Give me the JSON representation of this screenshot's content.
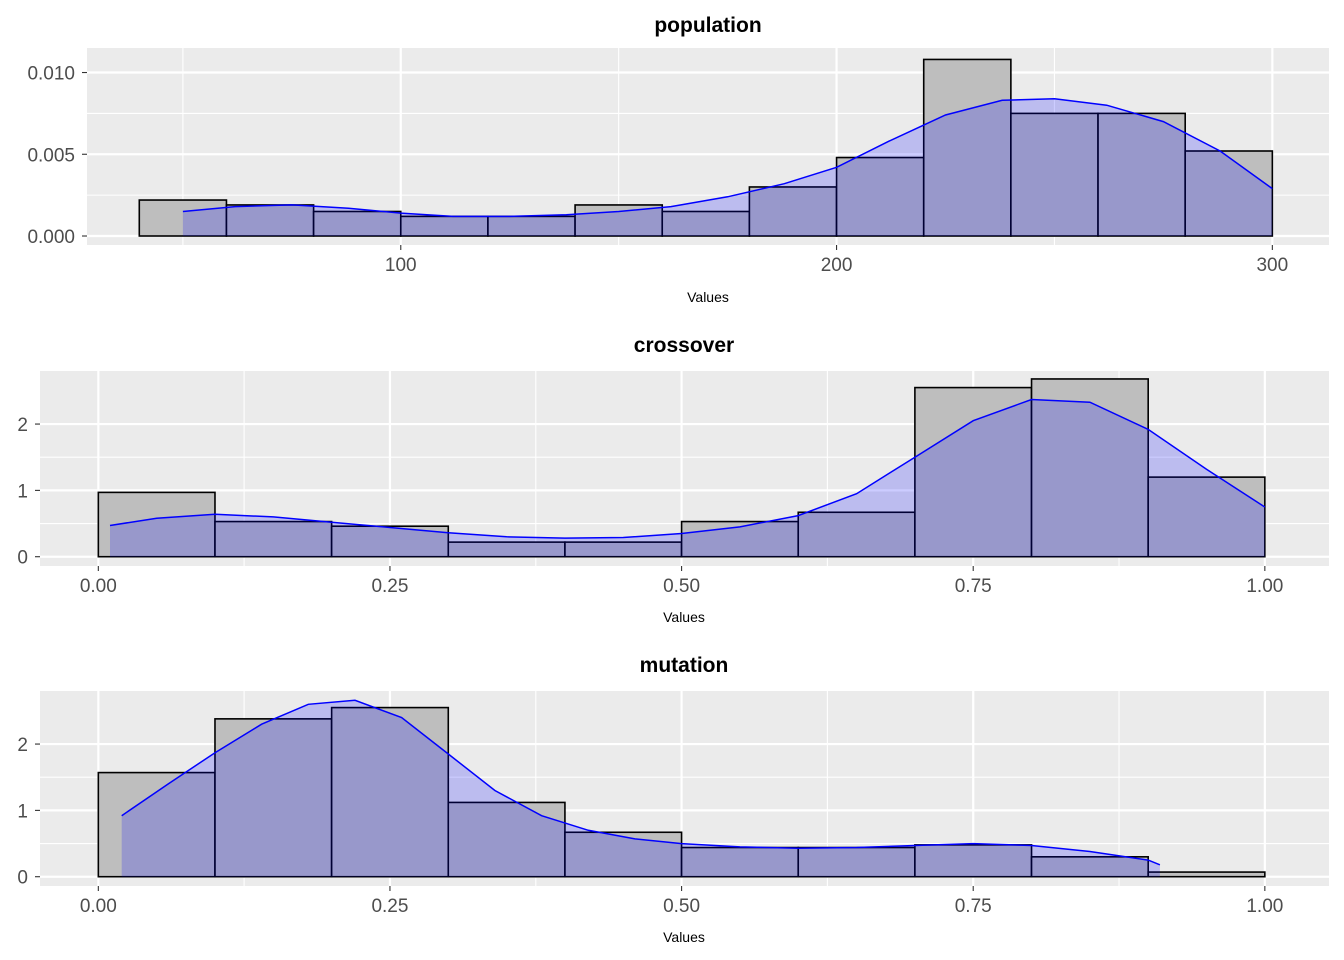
{
  "chart_data": [
    {
      "type": "bar",
      "title": "population",
      "xlabel": "Values",
      "ylabel": "",
      "xlim": [
        28,
        313
      ],
      "ylim": [
        -0.00055,
        0.0115
      ],
      "xticks": [
        100,
        200,
        300
      ],
      "xtick_labels": [
        "100",
        "200",
        "300"
      ],
      "yticks": [
        0.0,
        0.005,
        0.01
      ],
      "ytick_labels": [
        "0.000",
        "0.005",
        "0.010"
      ],
      "grid": true,
      "histogram": {
        "bin_edges": [
          40,
          60,
          80,
          100,
          120,
          140,
          160,
          180,
          200,
          220,
          240,
          260,
          280,
          300
        ],
        "values": [
          0.0022,
          0.0019,
          0.0015,
          0.0012,
          0.0012,
          0.0019,
          0.0015,
          0.003,
          0.0048,
          0.0108,
          0.0075,
          0.0075,
          0.0052
        ]
      },
      "density": {
        "x": [
          50,
          62,
          75,
          88,
          100,
          112,
          125,
          138,
          150,
          162,
          175,
          188,
          200,
          212,
          225,
          238,
          250,
          262,
          275,
          288,
          300
        ],
        "y": [
          0.0015,
          0.0018,
          0.0019,
          0.0017,
          0.0014,
          0.0012,
          0.0012,
          0.0013,
          0.0015,
          0.0018,
          0.0024,
          0.0032,
          0.0042,
          0.0058,
          0.0074,
          0.0083,
          0.0084,
          0.008,
          0.007,
          0.0052,
          0.0029
        ]
      }
    },
    {
      "type": "bar",
      "title": "crossover",
      "xlabel": "Values",
      "ylabel": "",
      "xlim": [
        -0.05,
        1.055
      ],
      "ylim": [
        -0.14,
        2.8
      ],
      "xticks": [
        0.0,
        0.25,
        0.5,
        0.75,
        1.0
      ],
      "xtick_labels": [
        "0.00",
        "0.25",
        "0.50",
        "0.75",
        "1.00"
      ],
      "yticks": [
        0,
        1,
        2
      ],
      "ytick_labels": [
        "0",
        "1",
        "2"
      ],
      "grid": true,
      "histogram": {
        "bin_edges": [
          0.0,
          0.1,
          0.2,
          0.3,
          0.4,
          0.5,
          0.6,
          0.7,
          0.8,
          0.9,
          1.0
        ],
        "values": [
          0.97,
          0.53,
          0.46,
          0.22,
          0.22,
          0.53,
          0.67,
          2.55,
          2.68,
          1.2
        ]
      },
      "density": {
        "x": [
          0.01,
          0.05,
          0.1,
          0.15,
          0.2,
          0.25,
          0.3,
          0.35,
          0.4,
          0.45,
          0.5,
          0.55,
          0.6,
          0.65,
          0.7,
          0.75,
          0.8,
          0.85,
          0.9,
          0.95,
          1.0
        ],
        "y": [
          0.47,
          0.58,
          0.64,
          0.6,
          0.52,
          0.44,
          0.36,
          0.3,
          0.28,
          0.29,
          0.35,
          0.45,
          0.62,
          0.95,
          1.5,
          2.05,
          2.37,
          2.33,
          1.92,
          1.32,
          0.75
        ]
      }
    },
    {
      "type": "bar",
      "title": "mutation",
      "xlabel": "Values",
      "ylabel": "",
      "xlim": [
        -0.05,
        1.055
      ],
      "ylim": [
        -0.14,
        2.8
      ],
      "xticks": [
        0.0,
        0.25,
        0.5,
        0.75,
        1.0
      ],
      "xtick_labels": [
        "0.00",
        "0.25",
        "0.50",
        "0.75",
        "1.00"
      ],
      "yticks": [
        0,
        1,
        2
      ],
      "ytick_labels": [
        "0",
        "1",
        "2"
      ],
      "grid": true,
      "histogram": {
        "bin_edges": [
          0.0,
          0.1,
          0.2,
          0.3,
          0.4,
          0.5,
          0.6,
          0.7,
          0.8,
          0.9,
          1.0
        ],
        "values": [
          1.57,
          2.38,
          2.55,
          1.12,
          0.67,
          0.44,
          0.44,
          0.48,
          0.3,
          0.07
        ]
      },
      "density": {
        "x": [
          0.02,
          0.06,
          0.1,
          0.14,
          0.18,
          0.22,
          0.26,
          0.3,
          0.34,
          0.38,
          0.42,
          0.46,
          0.5,
          0.55,
          0.6,
          0.65,
          0.7,
          0.75,
          0.8,
          0.85,
          0.9,
          0.91
        ],
        "y": [
          0.92,
          1.4,
          1.87,
          2.3,
          2.6,
          2.66,
          2.4,
          1.85,
          1.3,
          0.92,
          0.7,
          0.57,
          0.5,
          0.45,
          0.43,
          0.44,
          0.47,
          0.5,
          0.47,
          0.38,
          0.25,
          0.18
        ]
      }
    }
  ]
}
